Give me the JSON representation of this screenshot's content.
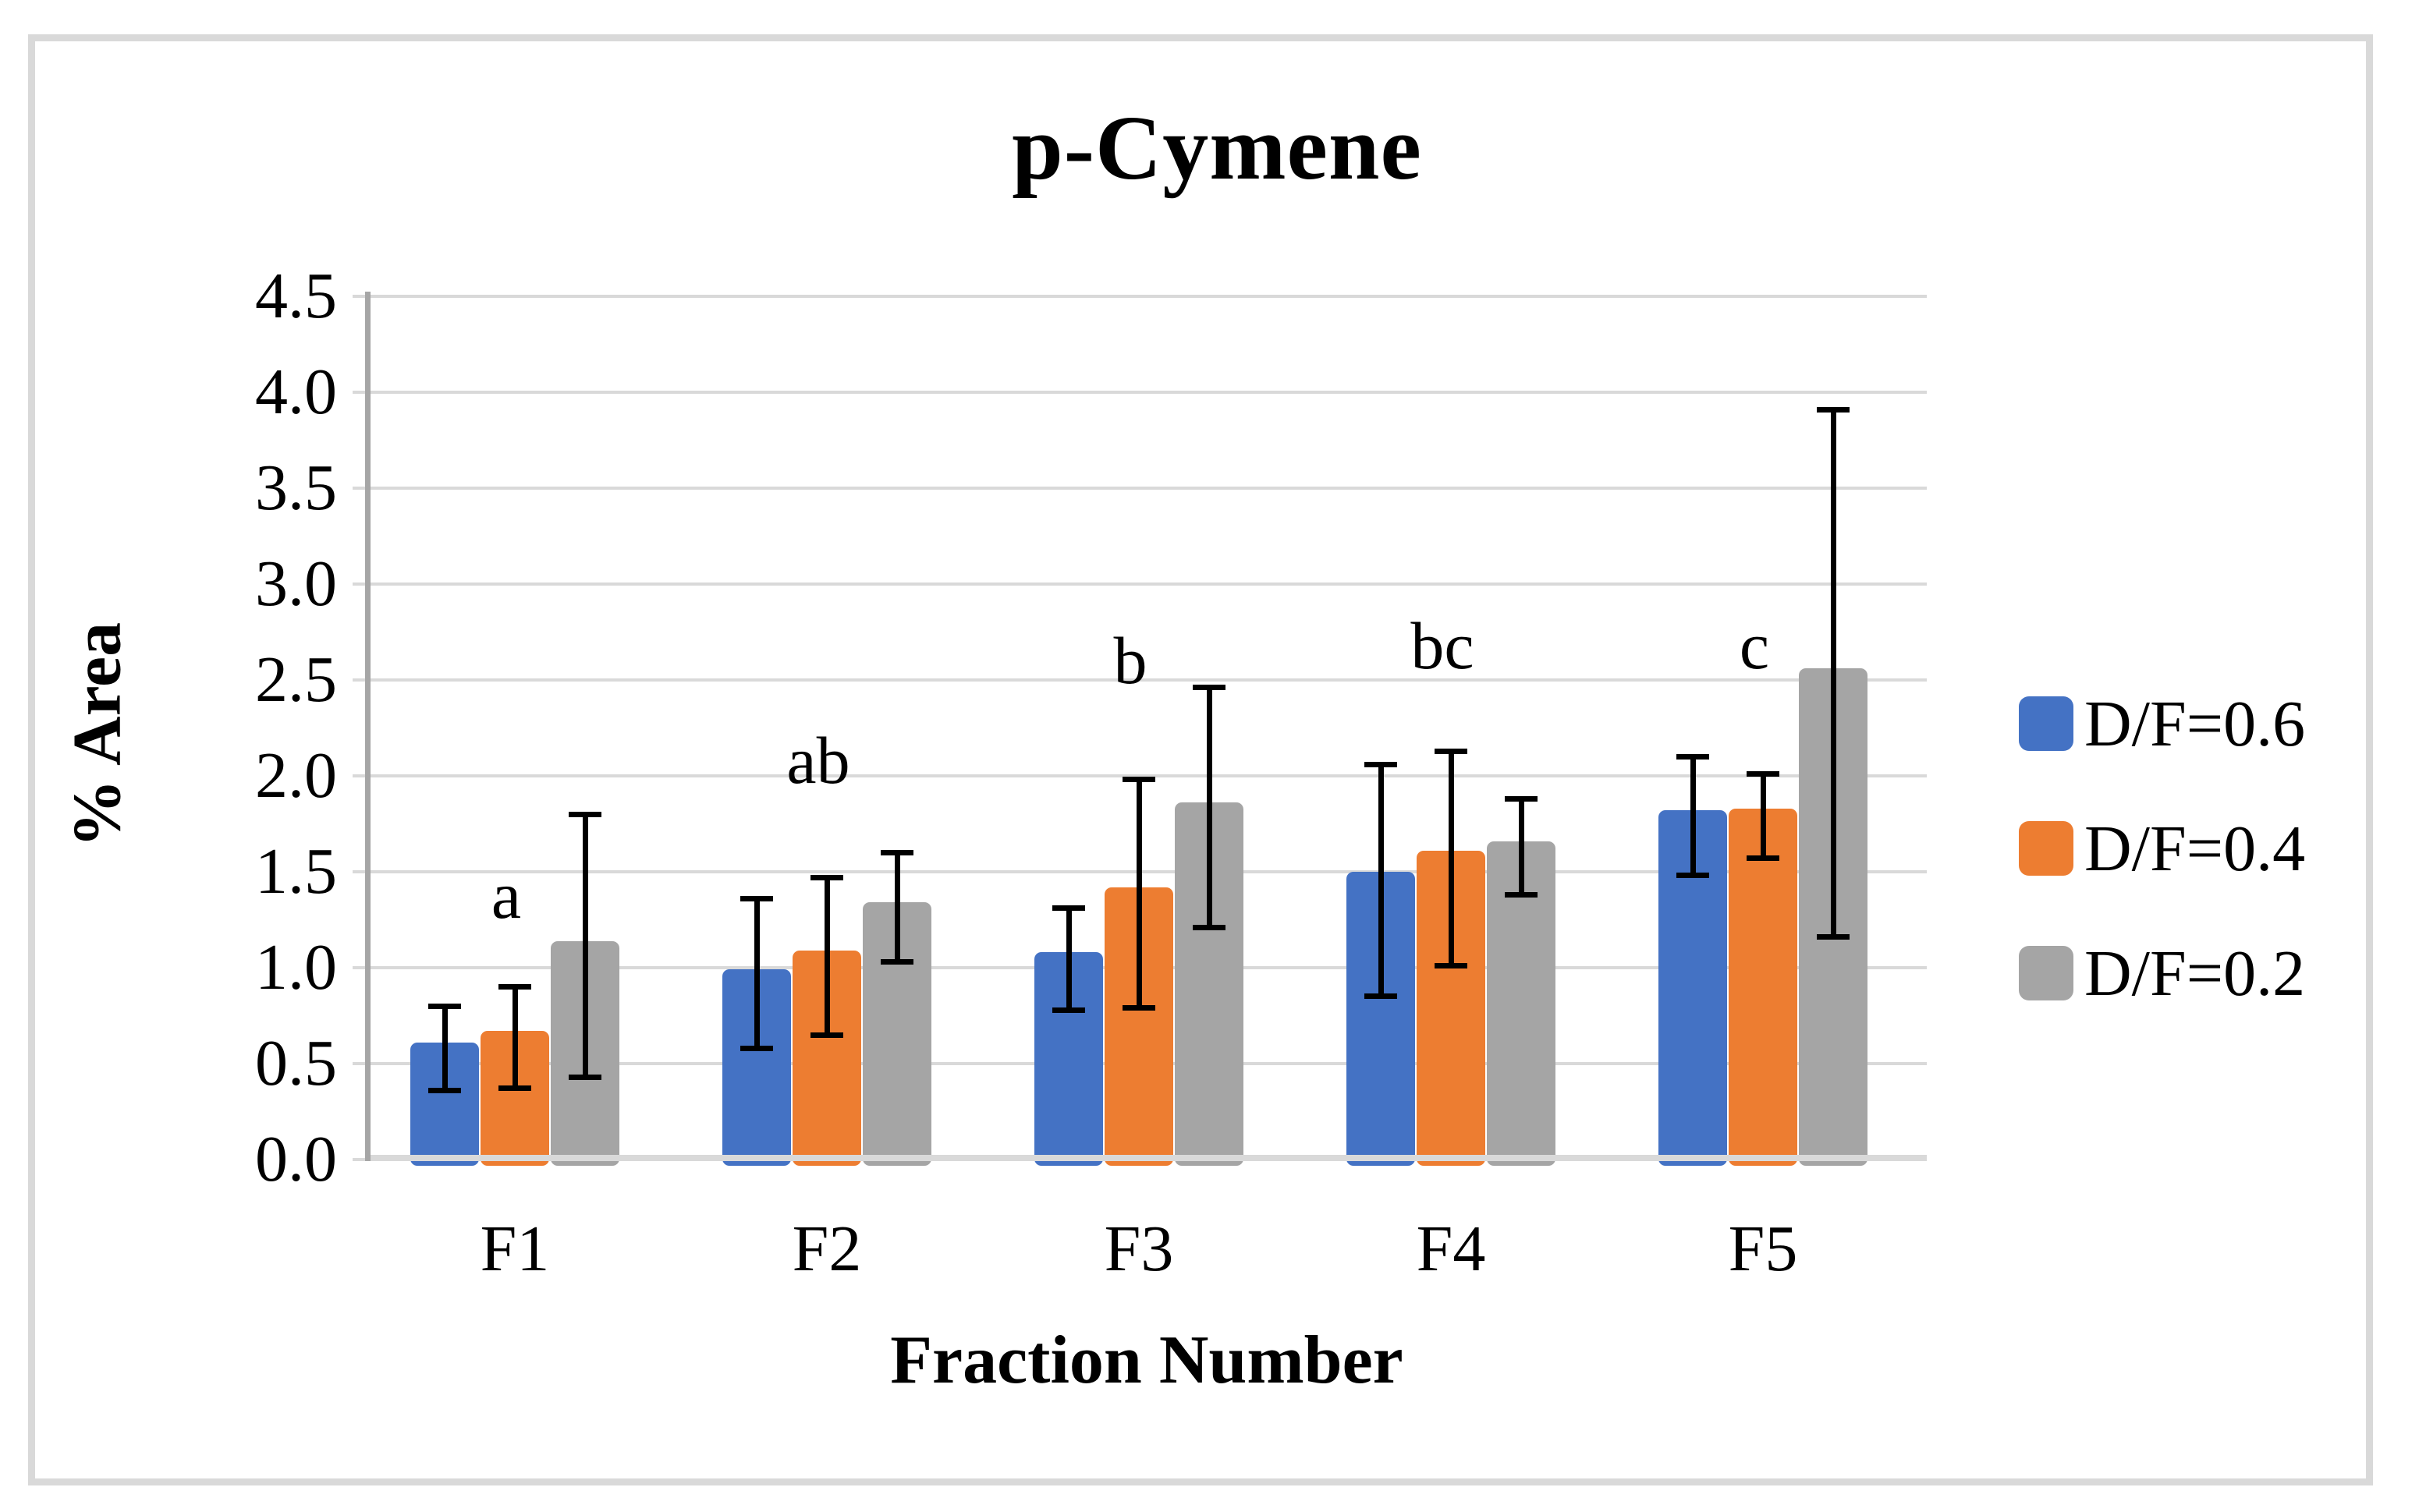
{
  "figure": {
    "border_color": "#D9D9D9",
    "background_color": "#ffffff",
    "gridline_color": "#D9D9D9",
    "y_axis_line_color": "#A6A6A6",
    "baseline_color": "#D9D9D9",
    "error_bar_color": "#000000"
  },
  "chart_data": {
    "type": "bar",
    "title": "p-Cymene",
    "xlabel": "Fraction Number",
    "ylabel": "% Area",
    "categories": [
      "F1",
      "F2",
      "F3",
      "F4",
      "F5"
    ],
    "series": [
      {
        "name": "D/F=0.6",
        "color": "#4472C4",
        "values": [
          0.61,
          0.99,
          1.08,
          1.5,
          1.82
        ],
        "err_low": [
          0.36,
          0.58,
          0.78,
          0.85,
          1.48
        ],
        "err_high": [
          0.8,
          1.36,
          1.31,
          2.06,
          2.1
        ]
      },
      {
        "name": "D/F=0.4",
        "color": "#ED7D31",
        "values": [
          0.67,
          1.09,
          1.42,
          1.61,
          1.83
        ],
        "err_low": [
          0.37,
          0.65,
          0.79,
          1.01,
          1.57
        ],
        "err_high": [
          0.9,
          1.47,
          1.98,
          2.13,
          2.01
        ]
      },
      {
        "name": "D/F=0.2",
        "color": "#A5A5A5",
        "values": [
          1.14,
          1.34,
          1.86,
          1.66,
          2.56
        ],
        "err_low": [
          0.43,
          1.03,
          1.21,
          1.38,
          1.16
        ],
        "err_high": [
          1.8,
          1.6,
          2.46,
          1.88,
          3.91
        ]
      }
    ],
    "annotations": [
      {
        "label": "a",
        "group": 0,
        "y": 1.38
      },
      {
        "label": "ab",
        "group": 1,
        "y": 2.08
      },
      {
        "label": "b",
        "group": 2,
        "y": 2.6
      },
      {
        "label": "bc",
        "group": 3,
        "y": 2.68
      },
      {
        "label": "c",
        "group": 4,
        "y": 2.68
      }
    ],
    "ylim": [
      0.0,
      4.5
    ],
    "ytick_step": 0.5,
    "yticks": [
      "0.0",
      "0.5",
      "1.0",
      "1.5",
      "2.0",
      "2.5",
      "3.0",
      "3.5",
      "4.0",
      "4.5"
    ],
    "grid": true,
    "legend_position": "right",
    "error_bars": true
  }
}
